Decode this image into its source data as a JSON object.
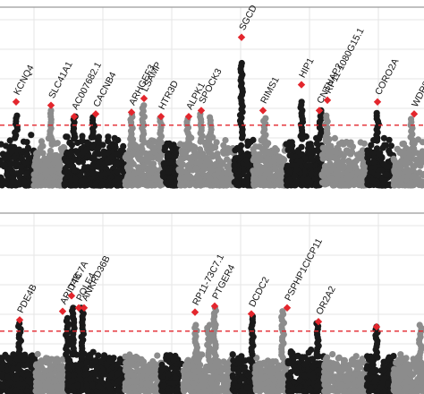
{
  "colors": {
    "chrom_dark": "#1a1a1a",
    "chrom_light": "#8c8c8c",
    "hit": "#e3262d",
    "threshold": "#e3262d",
    "grid": "#e6e6e6",
    "frame": "#9a9a9a"
  },
  "chart_data": [
    {
      "type": "scatter",
      "subtype": "manhattan",
      "title": "",
      "xlabel": "",
      "ylabel": "",
      "grid": true,
      "threshold": 7.3,
      "ylim": [
        0,
        21
      ],
      "chromosomes": [
        {
          "band": [
            0,
            38
          ],
          "shade": "dark",
          "base": 5.8
        },
        {
          "band": [
            38,
            72
          ],
          "shade": "light",
          "base": 5.2
        },
        {
          "band": [
            72,
            140
          ],
          "shade": "dark",
          "base": 5.9
        },
        {
          "band": [
            140,
            182
          ],
          "shade": "light",
          "base": 5.3
        },
        {
          "band": [
            182,
            200
          ],
          "shade": "dark",
          "base": 5.5
        },
        {
          "band": [
            200,
            262
          ],
          "shade": "light",
          "base": 5.4
        },
        {
          "band": [
            262,
            283
          ],
          "shade": "dark",
          "base": 5.8
        },
        {
          "band": [
            283,
            320
          ],
          "shade": "light",
          "base": 5.2
        },
        {
          "band": [
            320,
            360
          ],
          "shade": "dark",
          "base": 5.7
        },
        {
          "band": [
            360,
            410
          ],
          "shade": "light",
          "base": 5.3
        },
        {
          "band": [
            410,
            440
          ],
          "shade": "dark",
          "base": 5.5
        },
        {
          "band": [
            440,
            474
          ],
          "shade": "light",
          "base": 5.2
        }
      ],
      "peaks": [
        {
          "x": 18,
          "y": 8.4
        },
        {
          "x": 57,
          "y": 9.0
        },
        {
          "x": 83,
          "y": 8.3
        },
        {
          "x": 105,
          "y": 8.2
        },
        {
          "x": 147,
          "y": 8.6
        },
        {
          "x": 160,
          "y": 9.6
        },
        {
          "x": 180,
          "y": 8.1
        },
        {
          "x": 210,
          "y": 8.0
        },
        {
          "x": 225,
          "y": 8.6
        },
        {
          "x": 235,
          "y": 8.2
        },
        {
          "x": 270,
          "y": 14.5
        },
        {
          "x": 296,
          "y": 8.1
        },
        {
          "x": 337,
          "y": 10.0
        },
        {
          "x": 358,
          "y": 9.0
        },
        {
          "x": 365,
          "y": 8.4
        },
        {
          "x": 422,
          "y": 8.7
        },
        {
          "x": 460,
          "y": 8.0
        }
      ],
      "hits": [
        {
          "x": 18,
          "y": 10.0,
          "label": "KCNQ4"
        },
        {
          "x": 57,
          "y": 9.6,
          "label": "SLC41A1"
        },
        {
          "x": 83,
          "y": 8.3,
          "label": "AC007682.1"
        },
        {
          "x": 107,
          "y": 8.6,
          "label": "CACNB4"
        },
        {
          "x": 147,
          "y": 8.8,
          "label": "ARHGEF3"
        },
        {
          "x": 161,
          "y": 10.4,
          "label": "LSAMP"
        },
        {
          "x": 180,
          "y": 8.3,
          "label": "HTR3D"
        },
        {
          "x": 211,
          "y": 8.3,
          "label": "ALPK1"
        },
        {
          "x": 225,
          "y": 9.0,
          "label": "SPOCK3"
        },
        {
          "x": 270,
          "y": 17.5,
          "label": "SGCD"
        },
        {
          "x": 294,
          "y": 9.0,
          "label": "RIMS1"
        },
        {
          "x": 337,
          "y": 12.0,
          "label": "HIP1"
        },
        {
          "x": 357,
          "y": 9.0,
          "label": "CNTNAP2"
        },
        {
          "x": 366,
          "y": 10.2,
          "label": "RP11-1080G15.1"
        },
        {
          "x": 422,
          "y": 10.0,
          "label": "CORO2A"
        },
        {
          "x": 463,
          "y": 8.6,
          "label": "WDR8"
        }
      ]
    },
    {
      "type": "scatter",
      "subtype": "manhattan",
      "title": "",
      "xlabel": "",
      "ylabel": "",
      "grid": true,
      "threshold": 7.3,
      "ylim": [
        0,
        21
      ],
      "chromosomes": [
        {
          "band": [
            0,
            40
          ],
          "shade": "dark",
          "base": 4.5
        },
        {
          "band": [
            40,
            75
          ],
          "shade": "light",
          "base": 4.2
        },
        {
          "band": [
            75,
            140
          ],
          "shade": "dark",
          "base": 4.6
        },
        {
          "band": [
            140,
            180
          ],
          "shade": "light",
          "base": 4.3
        },
        {
          "band": [
            180,
            205
          ],
          "shade": "dark",
          "base": 4.5
        },
        {
          "band": [
            205,
            260
          ],
          "shade": "light",
          "base": 4.4
        },
        {
          "band": [
            260,
            285
          ],
          "shade": "dark",
          "base": 4.6
        },
        {
          "band": [
            285,
            322
          ],
          "shade": "light",
          "base": 4.2
        },
        {
          "band": [
            322,
            362
          ],
          "shade": "dark",
          "base": 4.6
        },
        {
          "band": [
            362,
            410
          ],
          "shade": "light",
          "base": 4.3
        },
        {
          "band": [
            410,
            440
          ],
          "shade": "dark",
          "base": 4.5
        },
        {
          "band": [
            440,
            474
          ],
          "shade": "light",
          "base": 4.2
        }
      ],
      "peaks": [
        {
          "x": 22,
          "y": 8.2
        },
        {
          "x": 75,
          "y": 8.8
        },
        {
          "x": 82,
          "y": 10.0
        },
        {
          "x": 92,
          "y": 10.0
        },
        {
          "x": 219,
          "y": 8.0
        },
        {
          "x": 233,
          "y": 8.0
        },
        {
          "x": 240,
          "y": 10.0
        },
        {
          "x": 282,
          "y": 9.0
        },
        {
          "x": 316,
          "y": 9.6
        },
        {
          "x": 355,
          "y": 8.2
        },
        {
          "x": 421,
          "y": 7.8
        },
        {
          "x": 470,
          "y": 8.0
        }
      ],
      "hits": [
        {
          "x": 22,
          "y": 8.6,
          "label": "PDE4B"
        },
        {
          "x": 70,
          "y": 9.6,
          "label": "ARID4B"
        },
        {
          "x": 80,
          "y": 11.4,
          "label": "TTC7A"
        },
        {
          "x": 88,
          "y": 10.0,
          "label": "POLE4"
        },
        {
          "x": 94,
          "y": 10.0,
          "label": "ANKRD36B"
        },
        {
          "x": 218,
          "y": 9.5,
          "label": "RP11-73C7.1"
        },
        {
          "x": 240,
          "y": 10.2,
          "label": "PTGER4"
        },
        {
          "x": 281,
          "y": 9.3,
          "label": "DCDC2"
        },
        {
          "x": 321,
          "y": 10.0,
          "label": "PSPHP1CICP11"
        },
        {
          "x": 356,
          "y": 8.4,
          "label": "OR2A2"
        },
        {
          "x": 421,
          "y": 7.8,
          "label": ""
        }
      ]
    }
  ]
}
